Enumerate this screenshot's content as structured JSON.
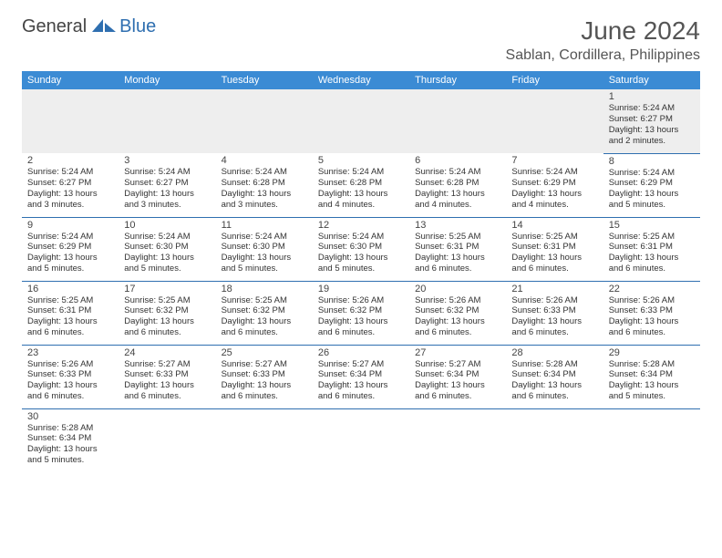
{
  "logo": {
    "part1": "General",
    "part2": "Blue"
  },
  "title": "June 2024",
  "location": "Sablan, Cordillera, Philippines",
  "headers": [
    "Sunday",
    "Monday",
    "Tuesday",
    "Wednesday",
    "Thursday",
    "Friday",
    "Saturday"
  ],
  "colors": {
    "header_bg": "#3b8bd4",
    "header_text": "#ffffff",
    "border": "#2f6fb0",
    "logo_blue": "#2f6fb0",
    "text": "#333333",
    "empty_bg": "#eeeeee"
  },
  "weeks": [
    [
      null,
      null,
      null,
      null,
      null,
      null,
      {
        "n": "1",
        "sr": "5:24 AM",
        "ss": "6:27 PM",
        "dl": "13 hours and 2 minutes."
      }
    ],
    [
      {
        "n": "2",
        "sr": "5:24 AM",
        "ss": "6:27 PM",
        "dl": "13 hours and 3 minutes."
      },
      {
        "n": "3",
        "sr": "5:24 AM",
        "ss": "6:27 PM",
        "dl": "13 hours and 3 minutes."
      },
      {
        "n": "4",
        "sr": "5:24 AM",
        "ss": "6:28 PM",
        "dl": "13 hours and 3 minutes."
      },
      {
        "n": "5",
        "sr": "5:24 AM",
        "ss": "6:28 PM",
        "dl": "13 hours and 4 minutes."
      },
      {
        "n": "6",
        "sr": "5:24 AM",
        "ss": "6:28 PM",
        "dl": "13 hours and 4 minutes."
      },
      {
        "n": "7",
        "sr": "5:24 AM",
        "ss": "6:29 PM",
        "dl": "13 hours and 4 minutes."
      },
      {
        "n": "8",
        "sr": "5:24 AM",
        "ss": "6:29 PM",
        "dl": "13 hours and 5 minutes."
      }
    ],
    [
      {
        "n": "9",
        "sr": "5:24 AM",
        "ss": "6:29 PM",
        "dl": "13 hours and 5 minutes."
      },
      {
        "n": "10",
        "sr": "5:24 AM",
        "ss": "6:30 PM",
        "dl": "13 hours and 5 minutes."
      },
      {
        "n": "11",
        "sr": "5:24 AM",
        "ss": "6:30 PM",
        "dl": "13 hours and 5 minutes."
      },
      {
        "n": "12",
        "sr": "5:24 AM",
        "ss": "6:30 PM",
        "dl": "13 hours and 5 minutes."
      },
      {
        "n": "13",
        "sr": "5:25 AM",
        "ss": "6:31 PM",
        "dl": "13 hours and 6 minutes."
      },
      {
        "n": "14",
        "sr": "5:25 AM",
        "ss": "6:31 PM",
        "dl": "13 hours and 6 minutes."
      },
      {
        "n": "15",
        "sr": "5:25 AM",
        "ss": "6:31 PM",
        "dl": "13 hours and 6 minutes."
      }
    ],
    [
      {
        "n": "16",
        "sr": "5:25 AM",
        "ss": "6:31 PM",
        "dl": "13 hours and 6 minutes."
      },
      {
        "n": "17",
        "sr": "5:25 AM",
        "ss": "6:32 PM",
        "dl": "13 hours and 6 minutes."
      },
      {
        "n": "18",
        "sr": "5:25 AM",
        "ss": "6:32 PM",
        "dl": "13 hours and 6 minutes."
      },
      {
        "n": "19",
        "sr": "5:26 AM",
        "ss": "6:32 PM",
        "dl": "13 hours and 6 minutes."
      },
      {
        "n": "20",
        "sr": "5:26 AM",
        "ss": "6:32 PM",
        "dl": "13 hours and 6 minutes."
      },
      {
        "n": "21",
        "sr": "5:26 AM",
        "ss": "6:33 PM",
        "dl": "13 hours and 6 minutes."
      },
      {
        "n": "22",
        "sr": "5:26 AM",
        "ss": "6:33 PM",
        "dl": "13 hours and 6 minutes."
      }
    ],
    [
      {
        "n": "23",
        "sr": "5:26 AM",
        "ss": "6:33 PM",
        "dl": "13 hours and 6 minutes."
      },
      {
        "n": "24",
        "sr": "5:27 AM",
        "ss": "6:33 PM",
        "dl": "13 hours and 6 minutes."
      },
      {
        "n": "25",
        "sr": "5:27 AM",
        "ss": "6:33 PM",
        "dl": "13 hours and 6 minutes."
      },
      {
        "n": "26",
        "sr": "5:27 AM",
        "ss": "6:34 PM",
        "dl": "13 hours and 6 minutes."
      },
      {
        "n": "27",
        "sr": "5:27 AM",
        "ss": "6:34 PM",
        "dl": "13 hours and 6 minutes."
      },
      {
        "n": "28",
        "sr": "5:28 AM",
        "ss": "6:34 PM",
        "dl": "13 hours and 6 minutes."
      },
      {
        "n": "29",
        "sr": "5:28 AM",
        "ss": "6:34 PM",
        "dl": "13 hours and 5 minutes."
      }
    ],
    [
      {
        "n": "30",
        "sr": "5:28 AM",
        "ss": "6:34 PM",
        "dl": "13 hours and 5 minutes."
      },
      null,
      null,
      null,
      null,
      null,
      null
    ]
  ],
  "labels": {
    "sunrise": "Sunrise:",
    "sunset": "Sunset:",
    "daylight": "Daylight:"
  }
}
